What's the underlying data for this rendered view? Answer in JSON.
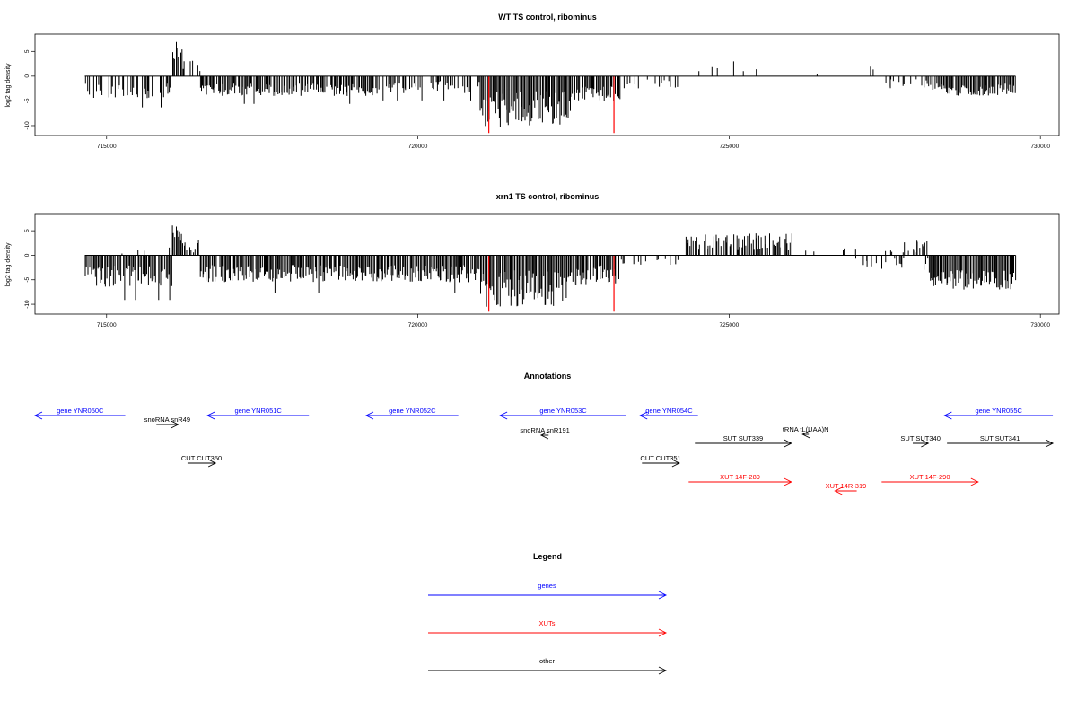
{
  "colors": {
    "genes": "#0000ff",
    "XUTs": "#ff0000",
    "other": "#000000",
    "highlight": "#ff0000"
  },
  "chart_data": [
    {
      "type": "bar",
      "title": "WT TS control, ribominus",
      "ylabel": "log2 tag density",
      "xlabel": "",
      "xlim": [
        713850,
        730300
      ],
      "ylim": [
        -12,
        8.5
      ],
      "xticks": [
        715000,
        720000,
        725000,
        730000
      ],
      "xtick_labels": [
        "715000",
        "720000",
        "725000",
        "730000"
      ],
      "yticks": [
        5,
        0,
        -5,
        -10
      ],
      "ytick_labels": [
        "5",
        "0",
        "-5",
        "-10"
      ],
      "grid": false,
      "baseline": {
        "x": [
          714650,
          729600
        ],
        "y": 0
      },
      "highlight_bars": [
        {
          "x": 721140,
          "y": -11.5
        },
        {
          "x": 723150,
          "y": -11.5
        }
      ],
      "segments": [
        {
          "x0": 714650,
          "x1": 716050,
          "mode": "neg",
          "min": 1.5,
          "max": 4.5,
          "density": 0.45,
          "spike": 0.04
        },
        {
          "x0": 716050,
          "x1": 716200,
          "mode": "pos",
          "min": 3,
          "max": 7.5,
          "density": 1.0,
          "spike": 0
        },
        {
          "x0": 716200,
          "x1": 716500,
          "mode": "pos",
          "min": 0.5,
          "max": 3.5,
          "density": 0.5,
          "spike": 0
        },
        {
          "x0": 716500,
          "x1": 719400,
          "mode": "neg",
          "min": 1.5,
          "max": 4.0,
          "density": 0.85,
          "spike": 0.03
        },
        {
          "x0": 719400,
          "x1": 721000,
          "mode": "neg",
          "min": 1.0,
          "max": 3.5,
          "density": 0.45,
          "spike": 0.03
        },
        {
          "x0": 721000,
          "x1": 722450,
          "mode": "neg",
          "min": 3.0,
          "max": 10.5,
          "density": 1.0,
          "spike": 0
        },
        {
          "x0": 722450,
          "x1": 723250,
          "mode": "neg",
          "min": 2.0,
          "max": 5.0,
          "density": 0.9,
          "spike": 0
        },
        {
          "x0": 723250,
          "x1": 724300,
          "mode": "neg",
          "min": 0.5,
          "max": 2.5,
          "density": 0.3,
          "spike": 0
        },
        {
          "x0": 724300,
          "x1": 726000,
          "mode": "pos",
          "min": 0.5,
          "max": 3.0,
          "density": 0.12,
          "spike": 0
        },
        {
          "x0": 726000,
          "x1": 727800,
          "mode": "pos",
          "min": 0.5,
          "max": 2.0,
          "density": 0.04,
          "spike": 0
        },
        {
          "x0": 727500,
          "x1": 728200,
          "mode": "neg",
          "min": 0.5,
          "max": 2.5,
          "density": 0.2,
          "spike": 0
        },
        {
          "x0": 728200,
          "x1": 729600,
          "mode": "neg",
          "min": 1.5,
          "max": 4.0,
          "density": 0.9,
          "spike": 0
        }
      ]
    },
    {
      "type": "bar",
      "title": "xrn1 TS control, ribominus",
      "ylabel": "log2 tag density",
      "xlabel": "",
      "xlim": [
        713850,
        730300
      ],
      "ylim": [
        -12,
        8.5
      ],
      "xticks": [
        715000,
        720000,
        725000,
        730000
      ],
      "xtick_labels": [
        "715000",
        "720000",
        "725000",
        "730000"
      ],
      "yticks": [
        5,
        0,
        -5,
        -10
      ],
      "ytick_labels": [
        "5",
        "0",
        "-5",
        "-10"
      ],
      "grid": false,
      "baseline": {
        "x": [
          714650,
          729600
        ],
        "y": 0
      },
      "highlight_bars": [
        {
          "x": 721140,
          "y": -11.5
        },
        {
          "x": 723150,
          "y": -11.5
        }
      ],
      "segments": [
        {
          "x0": 714650,
          "x1": 716050,
          "mode": "neg",
          "min": 2.0,
          "max": 6.5,
          "density": 0.9,
          "spike": 0.05
        },
        {
          "x0": 714650,
          "x1": 716050,
          "mode": "pos",
          "min": 0.3,
          "max": 2.0,
          "density": 0.05,
          "spike": 0
        },
        {
          "x0": 716050,
          "x1": 716200,
          "mode": "pos",
          "min": 3,
          "max": 7.5,
          "density": 1.0,
          "spike": 0
        },
        {
          "x0": 716200,
          "x1": 716500,
          "mode": "pos",
          "min": 0.5,
          "max": 3.5,
          "density": 0.5,
          "spike": 0
        },
        {
          "x0": 716500,
          "x1": 721000,
          "mode": "neg",
          "min": 2.0,
          "max": 5.5,
          "density": 0.95,
          "spike": 0.02
        },
        {
          "x0": 721000,
          "x1": 722450,
          "mode": "neg",
          "min": 3.0,
          "max": 10.5,
          "density": 1.0,
          "spike": 0
        },
        {
          "x0": 722450,
          "x1": 723250,
          "mode": "neg",
          "min": 2.0,
          "max": 6.0,
          "density": 0.95,
          "spike": 0
        },
        {
          "x0": 723250,
          "x1": 724300,
          "mode": "neg",
          "min": 0.5,
          "max": 2.0,
          "density": 0.3,
          "spike": 0
        },
        {
          "x0": 724300,
          "x1": 726000,
          "mode": "pos",
          "min": 1.0,
          "max": 4.5,
          "density": 0.8,
          "spike": 0
        },
        {
          "x0": 726000,
          "x1": 727500,
          "mode": "pos",
          "min": 0.5,
          "max": 1.5,
          "density": 0.04,
          "spike": 0
        },
        {
          "x0": 727000,
          "x1": 728200,
          "mode": "neg",
          "min": 0.5,
          "max": 3.0,
          "density": 0.3,
          "spike": 0
        },
        {
          "x0": 727500,
          "x1": 728200,
          "mode": "pos",
          "min": 0.5,
          "max": 3.5,
          "density": 0.4,
          "spike": 0
        },
        {
          "x0": 728200,
          "x1": 729600,
          "mode": "neg",
          "min": 3.0,
          "max": 7.0,
          "density": 1.0,
          "spike": 0
        }
      ]
    }
  ],
  "annotations": {
    "title": "Annotations",
    "features": [
      {
        "label": "gene YNR050C",
        "class": "genes",
        "start": 713850,
        "end": 715300,
        "strand": "-"
      },
      {
        "label": "gene YNR051C",
        "class": "genes",
        "start": 716620,
        "end": 718250,
        "strand": "-"
      },
      {
        "label": "gene YNR052C",
        "class": "genes",
        "start": 719170,
        "end": 720650,
        "strand": "-"
      },
      {
        "label": "gene YNR053C",
        "class": "genes",
        "start": 721320,
        "end": 723350,
        "strand": "-"
      },
      {
        "label": "gene YNR054C",
        "class": "genes",
        "start": 723570,
        "end": 724500,
        "strand": "-"
      },
      {
        "label": "gene YNR055C",
        "class": "genes",
        "start": 728460,
        "end": 730200,
        "strand": "-"
      },
      {
        "label": "snoRNA snR49",
        "class": "other",
        "start": 715800,
        "end": 716150,
        "strand": "+"
      },
      {
        "label": "snoRNA snR191",
        "class": "other",
        "start": 721980,
        "end": 722100,
        "strand": "-"
      },
      {
        "label": "CUT CUT350",
        "class": "other",
        "start": 716300,
        "end": 716750,
        "strand": "+"
      },
      {
        "label": "CUT CUT351",
        "class": "other",
        "start": 723600,
        "end": 724200,
        "strand": "+"
      },
      {
        "label": "SUT SUT339",
        "class": "other",
        "start": 724450,
        "end": 726000,
        "strand": "+"
      },
      {
        "label": "tRNA tL(UAA)N",
        "class": "other",
        "start": 726180,
        "end": 726280,
        "strand": "-"
      },
      {
        "label": "SUT SUT340",
        "class": "other",
        "start": 727950,
        "end": 728200,
        "strand": "+"
      },
      {
        "label": "SUT SUT341",
        "class": "other",
        "start": 728500,
        "end": 730200,
        "strand": "+"
      },
      {
        "label": "XUT 14F-289",
        "class": "XUTs",
        "start": 724350,
        "end": 726000,
        "strand": "+"
      },
      {
        "label": "XUT 14R-319",
        "class": "XUTs",
        "start": 726700,
        "end": 727050,
        "strand": "-"
      },
      {
        "label": "XUT 14F-290",
        "class": "XUTs",
        "start": 727450,
        "end": 729000,
        "strand": "+"
      }
    ]
  },
  "legend": {
    "title": "Legend",
    "items": [
      {
        "label": "genes",
        "class": "genes"
      },
      {
        "label": "XUTs",
        "class": "XUTs"
      },
      {
        "label": "other",
        "class": "other"
      }
    ]
  }
}
